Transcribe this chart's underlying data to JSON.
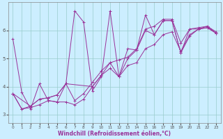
{
  "xlabel": "Windchill (Refroidissement éolien,°C)",
  "bg_color": "#cceeff",
  "line_color": "#993399",
  "grid_color": "#99cccc",
  "xlim": [
    -0.5,
    23.5
  ],
  "ylim": [
    2.7,
    7.0
  ],
  "yticks": [
    3,
    4,
    5,
    6
  ],
  "xticks": [
    0,
    1,
    2,
    3,
    4,
    5,
    6,
    7,
    8,
    9,
    10,
    11,
    12,
    13,
    14,
    15,
    16,
    17,
    18,
    19,
    20,
    21,
    22,
    23
  ],
  "s1_x": [
    0,
    1,
    2,
    3,
    4,
    5,
    6,
    7,
    8,
    9,
    10,
    11,
    12,
    13,
    14,
    15,
    16,
    17,
    18,
    19,
    20,
    21,
    22,
    23
  ],
  "s1_y": [
    5.7,
    3.8,
    3.2,
    4.1,
    3.5,
    3.45,
    4.1,
    6.7,
    6.3,
    3.85,
    4.35,
    6.7,
    4.35,
    5.35,
    5.3,
    6.55,
    5.85,
    6.35,
    6.35,
    5.2,
    5.8,
    6.05,
    6.1,
    5.9
  ],
  "s2_x": [
    0,
    1,
    2,
    3,
    4,
    5,
    6,
    7,
    8,
    9,
    10,
    11,
    12,
    13,
    14,
    15,
    16,
    17,
    18,
    19,
    20,
    21,
    22,
    23
  ],
  "s2_y": [
    3.75,
    3.2,
    3.25,
    3.35,
    3.5,
    3.45,
    3.45,
    3.35,
    3.55,
    4.0,
    4.4,
    4.65,
    4.35,
    4.75,
    4.85,
    5.35,
    5.5,
    5.85,
    5.95,
    5.25,
    5.85,
    6.05,
    6.15,
    5.95
  ],
  "s3_x": [
    0,
    1,
    2,
    3,
    4,
    5,
    6,
    7,
    8,
    9,
    10,
    11,
    12,
    13,
    14,
    15,
    16,
    17,
    18,
    19,
    20,
    21,
    22,
    23
  ],
  "s3_y": [
    3.75,
    3.2,
    3.3,
    3.55,
    3.6,
    3.7,
    4.1,
    3.5,
    3.75,
    4.15,
    4.55,
    4.85,
    4.95,
    5.05,
    5.35,
    6.05,
    6.15,
    6.4,
    6.4,
    5.55,
    6.05,
    6.1,
    6.15,
    5.9
  ],
  "s4_x": [
    0,
    2,
    3,
    4,
    5,
    6,
    9,
    10,
    11,
    12,
    13,
    14,
    15,
    16,
    17,
    18,
    19,
    20,
    21,
    22,
    23
  ],
  "s4_y": [
    3.75,
    3.3,
    3.55,
    3.6,
    3.7,
    4.1,
    4.0,
    4.4,
    4.85,
    4.35,
    5.0,
    5.3,
    6.0,
    5.85,
    6.35,
    6.35,
    5.2,
    6.05,
    6.05,
    6.1,
    5.9
  ]
}
